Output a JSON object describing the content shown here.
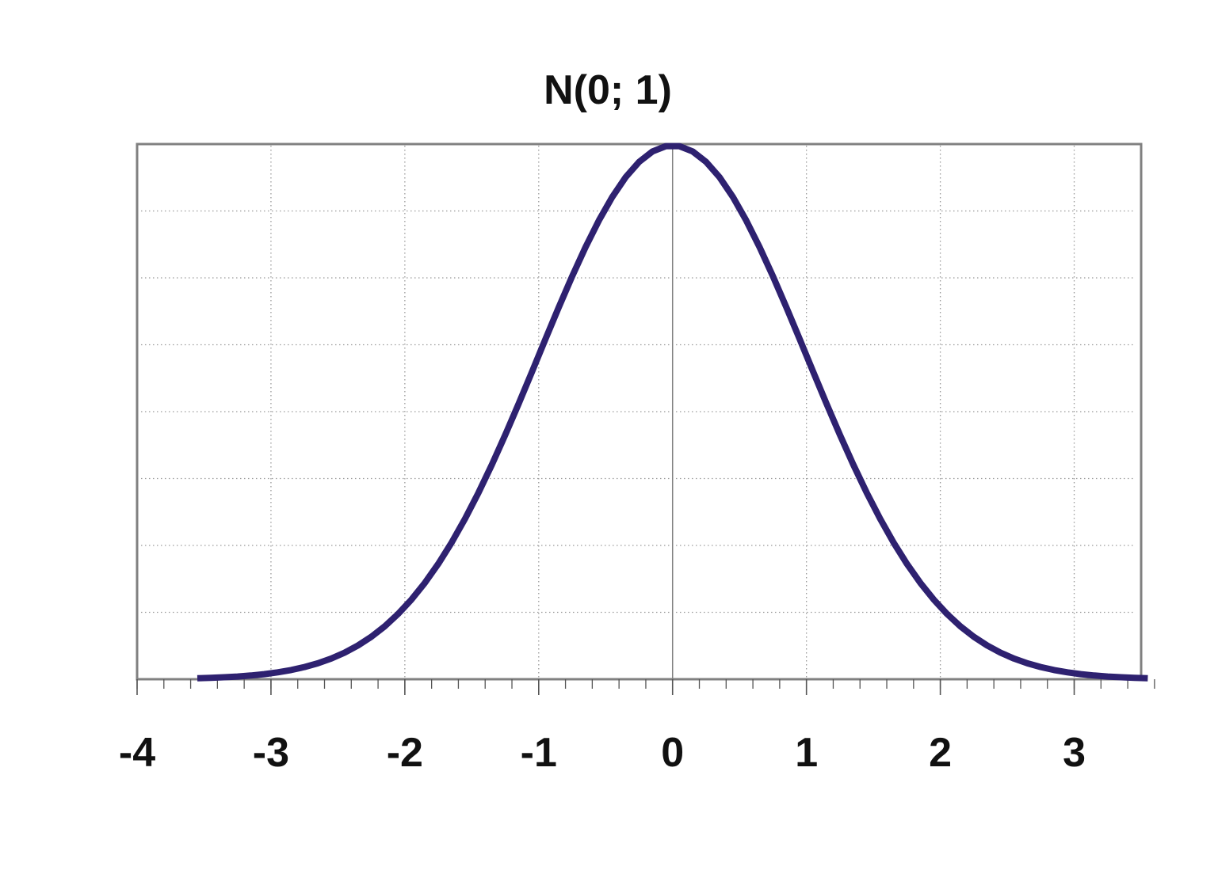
{
  "chart_data": {
    "type": "line",
    "title": "N(0; 1)",
    "xlabel": "",
    "ylabel": "",
    "xlim": [
      -4,
      3.5
    ],
    "ylim": [
      0,
      0.4
    ],
    "x_ticks": [
      -4,
      -3,
      -2,
      -1,
      0,
      1,
      2,
      3
    ],
    "x_tick_labels": [
      "-4",
      "-3",
      "-2",
      "-1",
      "0",
      "1",
      "2",
      "3"
    ],
    "x_minor_step": 0.2,
    "y_gridlines": [
      0.05,
      0.1,
      0.15,
      0.2,
      0.25,
      0.3,
      0.35,
      0.4
    ],
    "grid": true,
    "grid_style": "dotted",
    "legend": "none",
    "series": [
      {
        "distribution": "standard normal density",
        "mean": 0,
        "sd": 1,
        "x_start": -3.55,
        "x_end": 3.55,
        "x_step": 0.1,
        "color": "#2e2170"
      }
    ]
  },
  "colors": {
    "curve": "#2e2170",
    "frame": "#808080",
    "grid": "#9a9a9a",
    "text": "#111111",
    "background": "#ffffff"
  }
}
